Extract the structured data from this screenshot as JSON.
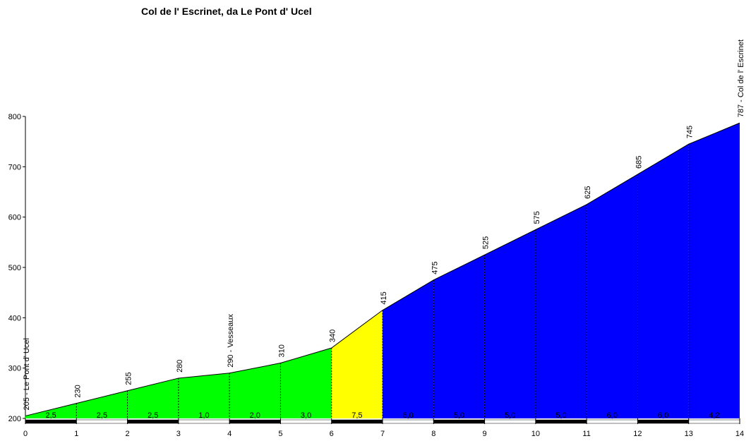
{
  "chart_data": {
    "type": "area",
    "title": "Col de l' Escrinet, da Le Pont d' Ucel",
    "x": [
      0,
      1,
      2,
      3,
      4,
      5,
      6,
      7,
      8,
      9,
      10,
      11,
      12,
      13,
      14
    ],
    "values": [
      205,
      230,
      255,
      280,
      290,
      310,
      340,
      415,
      475,
      525,
      575,
      625,
      685,
      745,
      787
    ],
    "value_labels": [
      "205 - Le Pont d' Ucel",
      "230",
      "255",
      "280",
      "290 - Vesseaux",
      "310",
      "340",
      "415",
      "475",
      "525",
      "575",
      "625",
      "685",
      "745",
      "787 - Col de l' Escrinet"
    ],
    "segment_labels": [
      "2,5",
      "2,5",
      "2,5",
      "1,0",
      "2,0",
      "3,0",
      "7,5",
      "6,0",
      "5,0",
      "5,0",
      "5,0",
      "6,0",
      "6,0",
      "4,2"
    ],
    "segment_colors": [
      "#00ff00",
      "#00ff00",
      "#00ff00",
      "#00ff00",
      "#00ff00",
      "#00ff00",
      "#ffff00",
      "#0000ff",
      "#0000ff",
      "#0000ff",
      "#0000ff",
      "#0000ff",
      "#0000ff",
      "#0000ff"
    ],
    "xlim": [
      0,
      14
    ],
    "xticks": [
      0,
      1,
      2,
      3,
      4,
      5,
      6,
      7,
      8,
      9,
      10,
      11,
      12,
      13,
      14
    ],
    "ylim": [
      200,
      800
    ],
    "yticks": [
      200,
      300,
      400,
      500,
      600,
      700,
      800
    ]
  }
}
